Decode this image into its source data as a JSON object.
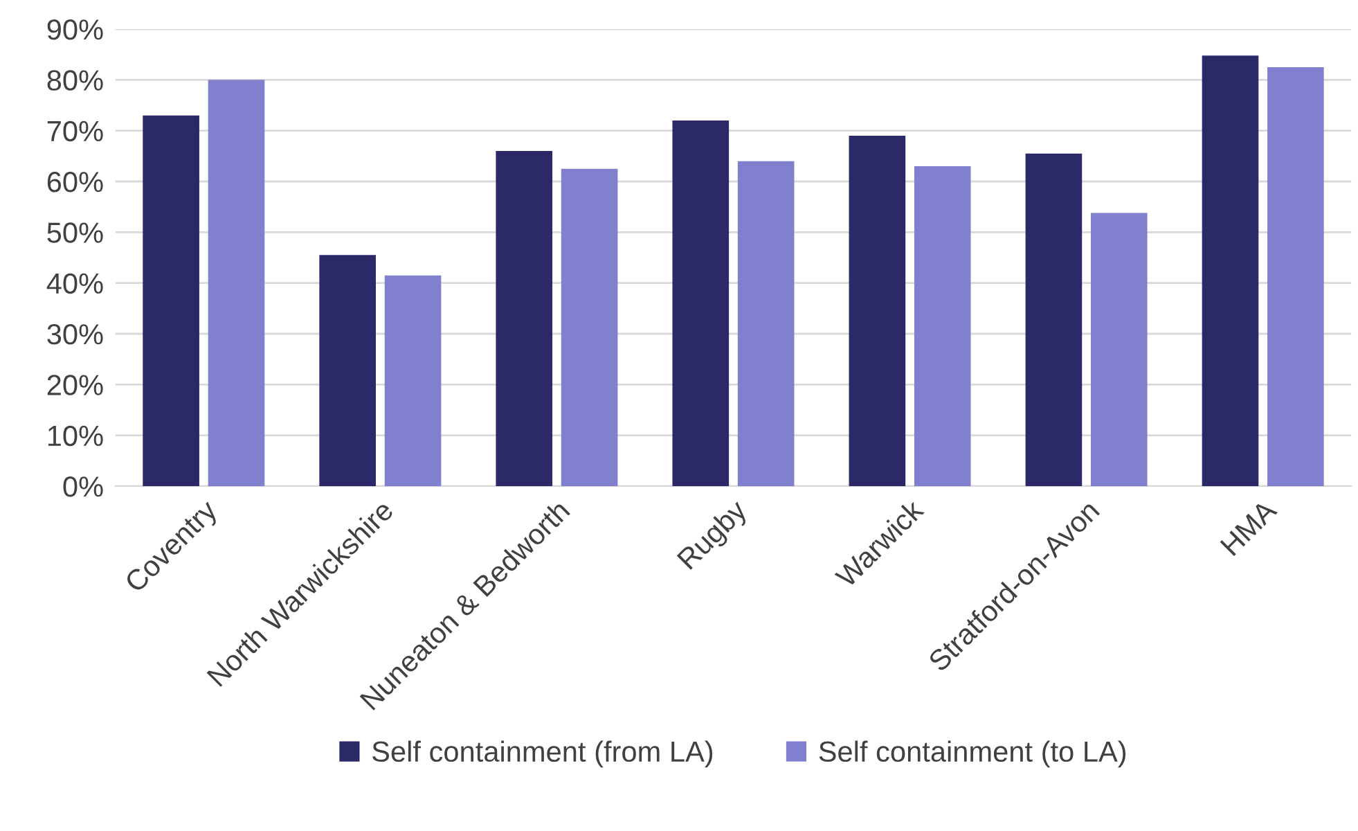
{
  "chart_data": {
    "type": "bar",
    "categories": [
      "Coventry",
      "North Warwickshire",
      "Nuneaton & Bedworth",
      "Rugby",
      "Warwick",
      "Stratford-on-Avon",
      "HMA"
    ],
    "series": [
      {
        "name": "Self containment (from LA)",
        "color": "#2b2968",
        "values": [
          73,
          45.5,
          66,
          72,
          69,
          65.5,
          84.8
        ]
      },
      {
        "name": "Self containment (to LA)",
        "color": "#8180cf",
        "values": [
          80,
          41.5,
          62.5,
          64,
          63,
          53.8,
          82.5
        ]
      }
    ],
    "ylim": [
      0,
      90
    ],
    "yticks": [
      {
        "value": 0,
        "label": "0%"
      },
      {
        "value": 10,
        "label": "10%"
      },
      {
        "value": 20,
        "label": "20%"
      },
      {
        "value": 30,
        "label": "30%"
      },
      {
        "value": 40,
        "label": "40%"
      },
      {
        "value": 50,
        "label": "50%"
      },
      {
        "value": 60,
        "label": "60%"
      },
      {
        "value": 70,
        "label": "70%"
      },
      {
        "value": 80,
        "label": "80%"
      },
      {
        "value": 90,
        "label": "90%"
      }
    ],
    "grid": "y",
    "legend": "bottom"
  }
}
